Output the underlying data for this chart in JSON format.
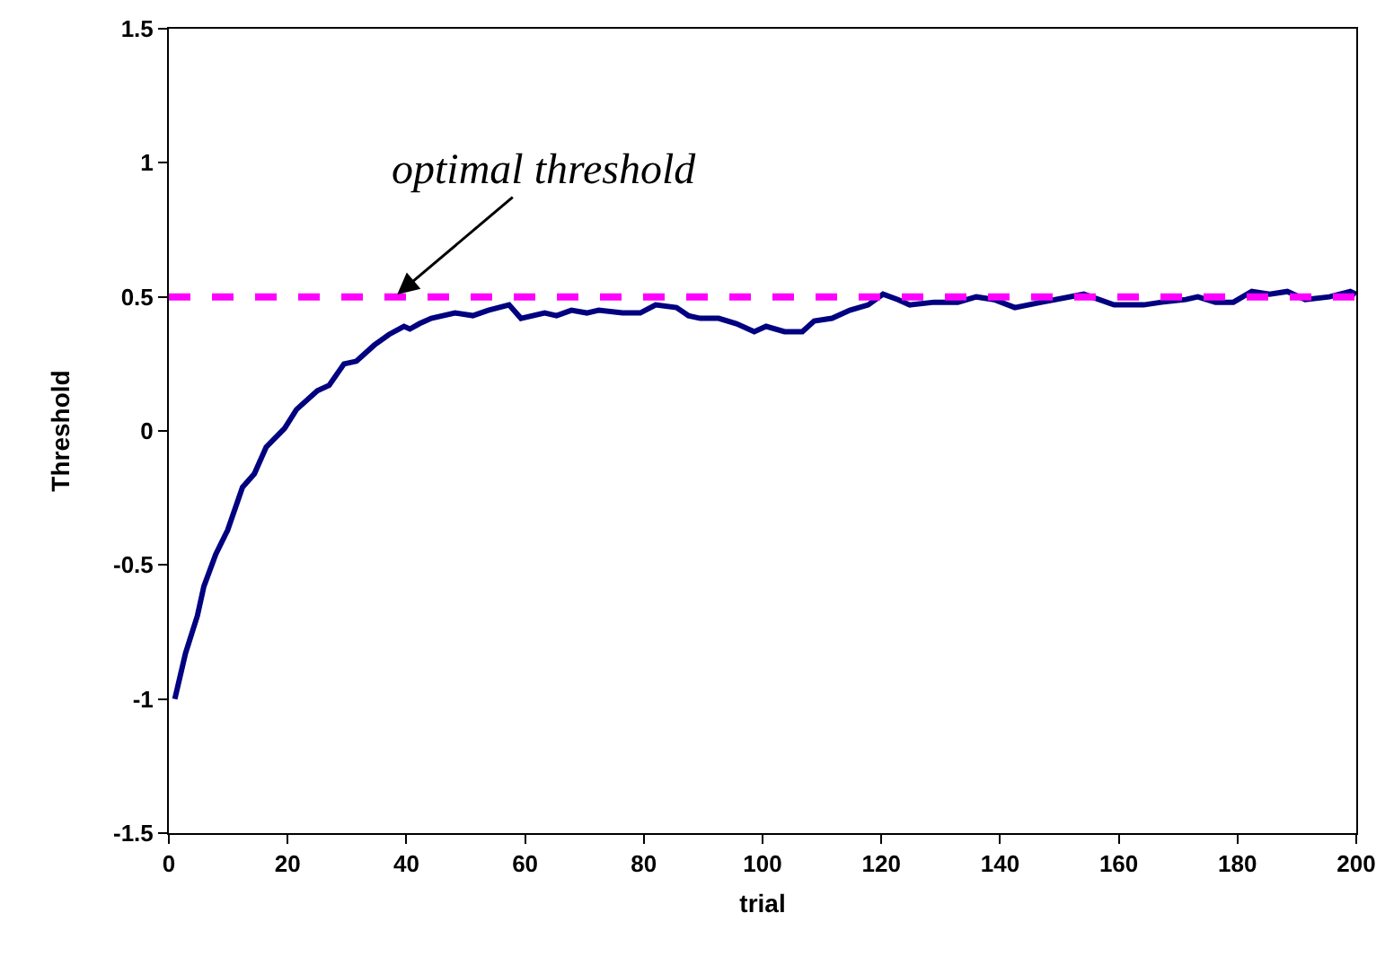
{
  "chart_data": {
    "type": "line",
    "xlabel": "trial",
    "ylabel": "Threshold",
    "xlim": [
      0,
      200
    ],
    "xticks": [
      0,
      20,
      40,
      60,
      80,
      100,
      120,
      140,
      160,
      180,
      200
    ],
    "ylim": [
      -1.5,
      1.5
    ],
    "yticks": [
      -1.5,
      -1,
      -0.5,
      0,
      0.5,
      1,
      1.5
    ],
    "grid": false,
    "marker": "none",
    "line_style": "solid",
    "series": [
      {
        "color": "#000080",
        "x": [
          1,
          2.8,
          4.8,
          5.9,
          7.9,
          9.9,
          12.4,
          14.4,
          16.4,
          19.5,
          21.5,
          25,
          27,
          29.5,
          31.6,
          34.6,
          37.1,
          39.6,
          40.6,
          42.2,
          44.2,
          48.2,
          51.2,
          53.8,
          57.3,
          59.3,
          63.3,
          65.3,
          67.8,
          70.4,
          72.4,
          76.4,
          79.4,
          82,
          85.5,
          87.5,
          89.5,
          92.6,
          95.6,
          98.6,
          100.6,
          103.7,
          106.7,
          108.7,
          111.7,
          114.7,
          117.8,
          120.3,
          122.8,
          124.8,
          128.9,
          132.9,
          136,
          139,
          142.5,
          147,
          154.1,
          159.2,
          164.2,
          167.2,
          171.3,
          173.3,
          176.3,
          179.3,
          182.4,
          185.4,
          188.4,
          191.4,
          195.5,
          199,
          200
        ],
        "values": [
          -1,
          -0.83,
          -0.69,
          -0.58,
          -0.46,
          -0.37,
          -0.21,
          -0.16,
          -0.06,
          0.01,
          0.08,
          0.15,
          0.17,
          0.25,
          0.26,
          0.32,
          0.36,
          0.39,
          0.38,
          0.4,
          0.42,
          0.44,
          0.43,
          0.45,
          0.47,
          0.42,
          0.44,
          0.43,
          0.45,
          0.44,
          0.45,
          0.44,
          0.44,
          0.47,
          0.46,
          0.43,
          0.42,
          0.42,
          0.4,
          0.37,
          0.39,
          0.37,
          0.37,
          0.41,
          0.42,
          0.45,
          0.47,
          0.51,
          0.49,
          0.47,
          0.48,
          0.48,
          0.5,
          0.49,
          0.46,
          0.48,
          0.51,
          0.47,
          0.47,
          0.48,
          0.49,
          0.5,
          0.48,
          0.48,
          0.52,
          0.51,
          0.52,
          0.49,
          0.5,
          0.52,
          0.51
        ]
      }
    ],
    "ref_lines": [
      {
        "axis": "y",
        "value": 0.5,
        "color": "#ff00ff",
        "line_style": "dashed"
      }
    ],
    "annotations": [
      {
        "text": "optimal threshold",
        "x": 38,
        "y": 0.5
      }
    ]
  }
}
